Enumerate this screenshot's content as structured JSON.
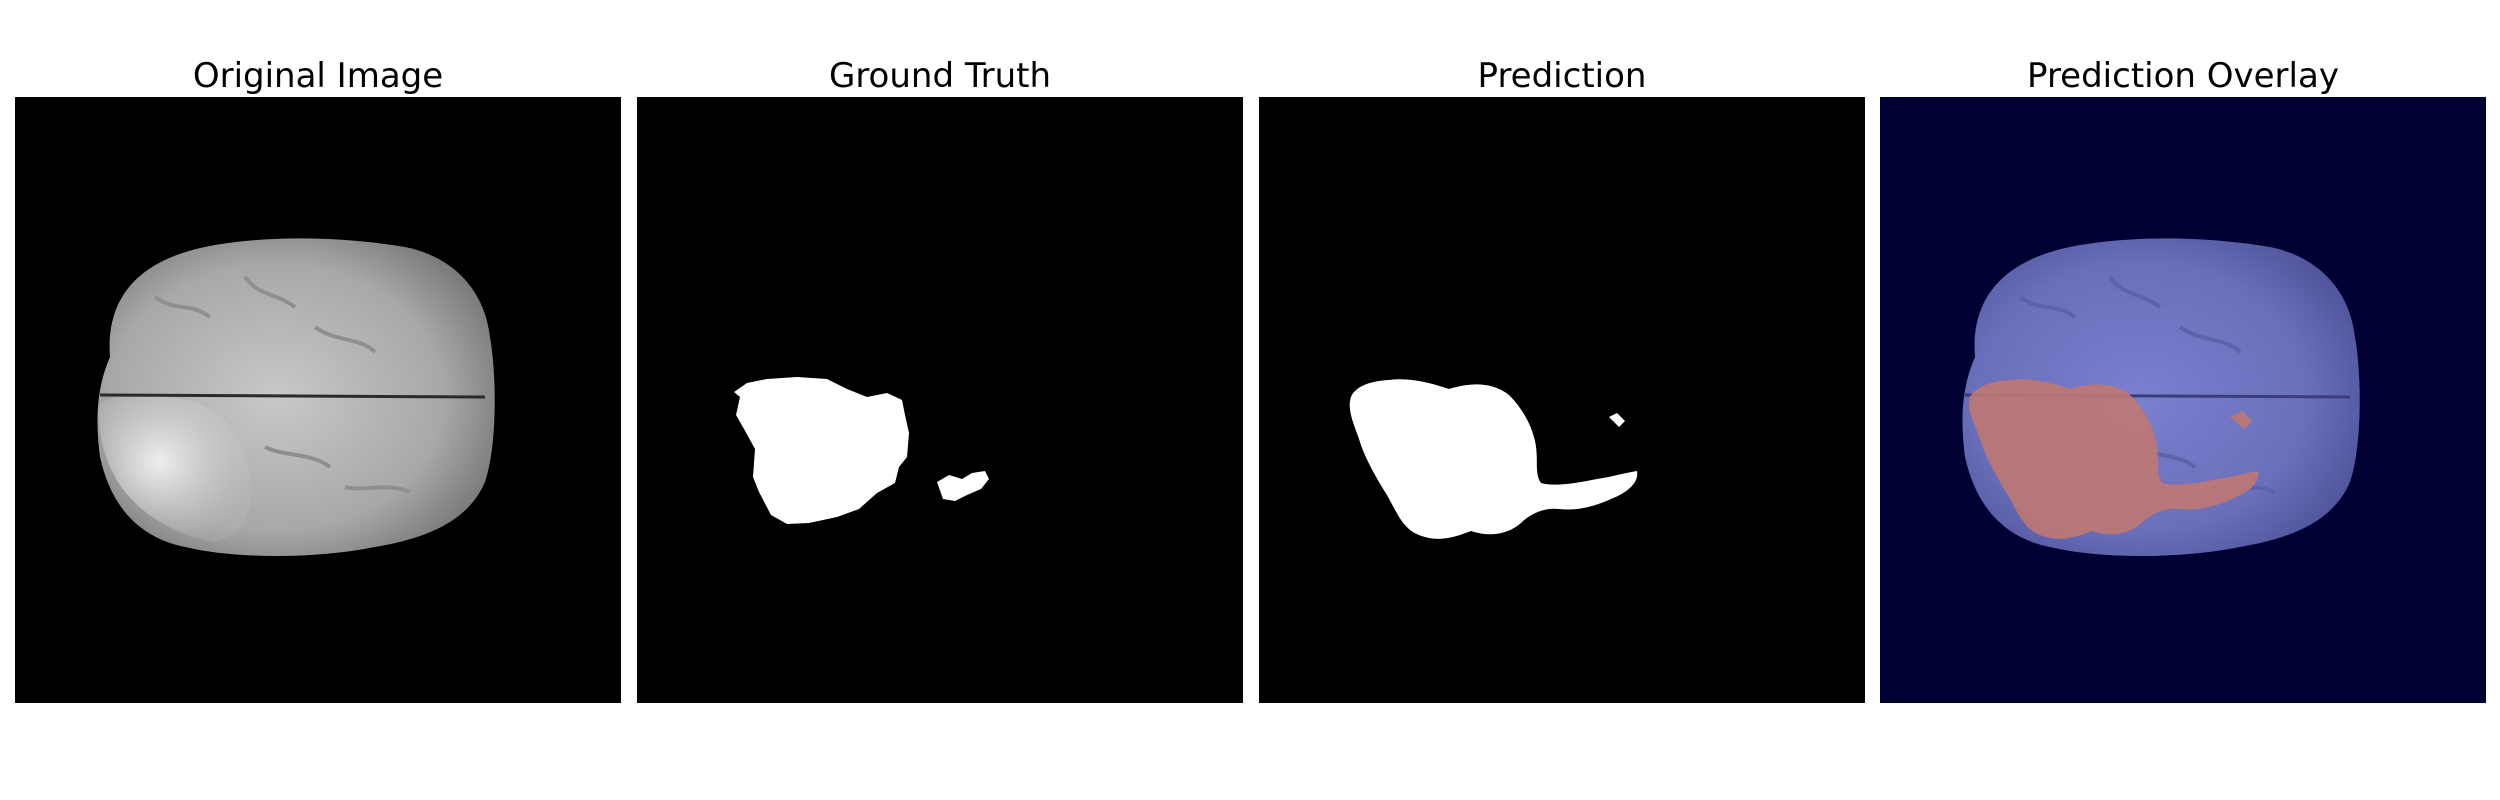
{
  "panels": [
    {
      "title": "Original Image"
    },
    {
      "title": "Ground Truth"
    },
    {
      "title": "Prediction"
    },
    {
      "title": "Prediction Overlay"
    }
  ],
  "colors": {
    "page_background": "#ffffff",
    "image_background": "#000000",
    "overlay_background": "#000033",
    "brain_tissue_gray": "#b9b9b9",
    "mask_white": "#ffffff",
    "overlay_brain_blue": "#6f73c2",
    "overlay_tumor_red": "#c07872"
  }
}
